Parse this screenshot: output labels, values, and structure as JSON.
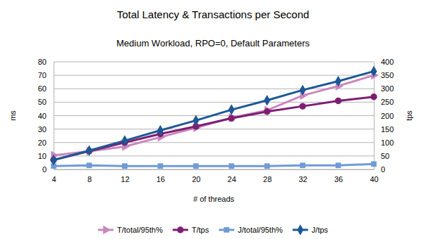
{
  "chart_data": {
    "type": "line",
    "title": "Total Latency & Transactions per Second",
    "subtitle": "Medium Workload, RPO=0, Default Parameters",
    "x_label": "# of threads",
    "y_label": "ms",
    "y2_label": "tps",
    "x": [
      4,
      8,
      12,
      16,
      20,
      24,
      28,
      32,
      36,
      40
    ],
    "xlim": [
      4,
      40
    ],
    "xticks": [
      4,
      8,
      12,
      16,
      20,
      24,
      28,
      32,
      36,
      40
    ],
    "ylim": [
      0,
      80
    ],
    "yticks": [
      0,
      10,
      20,
      30,
      40,
      50,
      60,
      70,
      80
    ],
    "y2lim": [
      0,
      400
    ],
    "y2ticks": [
      0,
      50,
      100,
      150,
      200,
      250,
      300,
      350,
      400
    ],
    "grid": true,
    "legend": "bottom",
    "series": [
      {
        "name": "T/total/95th%",
        "color": "#c987bf",
        "marker": "triangle",
        "axis": "y",
        "values": [
          10.5,
          13.5,
          17,
          24,
          31,
          38.5,
          44,
          55,
          62,
          70
        ]
      },
      {
        "name": "T/tps",
        "color": "#7e1e72",
        "marker": "circle",
        "axis": "y2",
        "values": [
          35,
          68,
          100,
          132,
          160,
          190,
          215,
          235,
          255,
          270
        ]
      },
      {
        "name": "J/total/95th%",
        "color": "#6f9bd6",
        "marker": "square",
        "axis": "y",
        "values": [
          2.5,
          3,
          2.5,
          2.5,
          2.5,
          2.5,
          2.5,
          3,
          3,
          4
        ]
      },
      {
        "name": "J/tps",
        "color": "#1c5896",
        "marker": "diamond",
        "axis": "y2",
        "values": [
          35,
          70,
          107,
          145,
          182,
          222,
          257,
          295,
          328,
          365
        ]
      }
    ]
  }
}
